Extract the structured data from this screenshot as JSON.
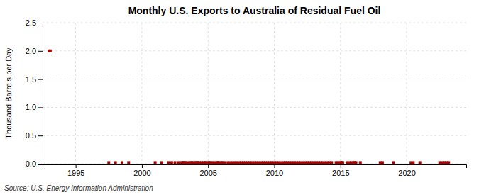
{
  "chart_data": {
    "type": "scatter",
    "title": "Monthly U.S. Exports to Australia of Residual Fuel Oil",
    "y_label": "Thousand Barrels per Day",
    "source": "Source: U.S. Energy Information Administration",
    "color": "#aa0000",
    "marker": "square",
    "grid": true,
    "xlim": [
      1992.5,
      2024.5
    ],
    "ylim": [
      0.0,
      2.5
    ],
    "xticks": [
      1995,
      2000,
      2005,
      2010,
      2015,
      2020
    ],
    "yticks": [
      {
        "value": 0.0,
        "label": "0.0"
      },
      0.5,
      {
        "value": 1.0,
        "label": "1.0"
      },
      1.5,
      {
        "value": 2.0,
        "label": "2.0"
      },
      2.5
    ],
    "x": [
      1993.0,
      1993.08,
      1997.5,
      1998.0,
      1998.5,
      1999.0,
      2001.0,
      2001.5,
      2002.0,
      2002.25,
      2002.5,
      2002.75,
      2003.0,
      2003.08,
      2003.17,
      2003.25,
      2003.33,
      2003.5,
      2003.67,
      2003.75,
      2003.83,
      2004.0,
      2004.08,
      2004.17,
      2004.25,
      2004.33,
      2004.5,
      2004.67,
      2004.75,
      2004.83,
      2005.0,
      2005.08,
      2005.17,
      2005.33,
      2005.5,
      2005.67,
      2005.75,
      2005.83,
      2006.0,
      2006.08,
      2006.25,
      2006.5,
      2006.67,
      2006.83,
      2007.0,
      2007.17,
      2007.33,
      2007.5,
      2007.67,
      2007.83,
      2008.0,
      2008.17,
      2008.33,
      2008.5,
      2008.67,
      2008.83,
      2009.0,
      2009.17,
      2009.33,
      2009.5,
      2009.67,
      2009.83,
      2010.0,
      2010.17,
      2010.33,
      2010.5,
      2010.67,
      2010.83,
      2011.0,
      2011.17,
      2011.33,
      2011.5,
      2011.67,
      2011.83,
      2012.0,
      2012.17,
      2012.33,
      2012.5,
      2012.67,
      2012.83,
      2013.0,
      2013.17,
      2013.33,
      2013.5,
      2013.67,
      2013.83,
      2014.0,
      2014.17,
      2014.33,
      2014.67,
      2014.83,
      2015.0,
      2015.08,
      2015.17,
      2015.5,
      2015.67,
      2015.83,
      2016.0,
      2016.08,
      2016.17,
      2016.5,
      2018.0,
      2018.17,
      2019.0,
      2020.33,
      2020.5,
      2021.0,
      2022.5,
      2022.67,
      2022.83,
      2023.0,
      2023.17
    ],
    "values": [
      2.0,
      2.0,
      0.02,
      0.02,
      0.02,
      0.02,
      0.02,
      0.02,
      0.02,
      0.02,
      0.02,
      0.02,
      0.02,
      0.02,
      0.02,
      0.02,
      0.02,
      0.02,
      0.02,
      0.02,
      0.02,
      0.02,
      0.02,
      0.02,
      0.02,
      0.02,
      0.02,
      0.02,
      0.02,
      0.02,
      0.02,
      0.02,
      0.02,
      0.02,
      0.02,
      0.02,
      0.02,
      0.02,
      0.02,
      0.02,
      0.02,
      0.02,
      0.02,
      0.02,
      0.02,
      0.02,
      0.02,
      0.02,
      0.02,
      0.02,
      0.02,
      0.02,
      0.02,
      0.02,
      0.02,
      0.02,
      0.02,
      0.02,
      0.02,
      0.02,
      0.02,
      0.02,
      0.02,
      0.02,
      0.02,
      0.02,
      0.02,
      0.02,
      0.02,
      0.02,
      0.02,
      0.02,
      0.02,
      0.02,
      0.02,
      0.02,
      0.02,
      0.02,
      0.02,
      0.02,
      0.02,
      0.02,
      0.02,
      0.02,
      0.02,
      0.02,
      0.02,
      0.02,
      0.02,
      0.02,
      0.02,
      0.02,
      0.02,
      0.02,
      0.02,
      0.02,
      0.02,
      0.02,
      0.02,
      0.02,
      0.02,
      0.02,
      0.02,
      0.02,
      0.02,
      0.02,
      0.02,
      0.02,
      0.02,
      0.02,
      0.02,
      0.02
    ]
  }
}
